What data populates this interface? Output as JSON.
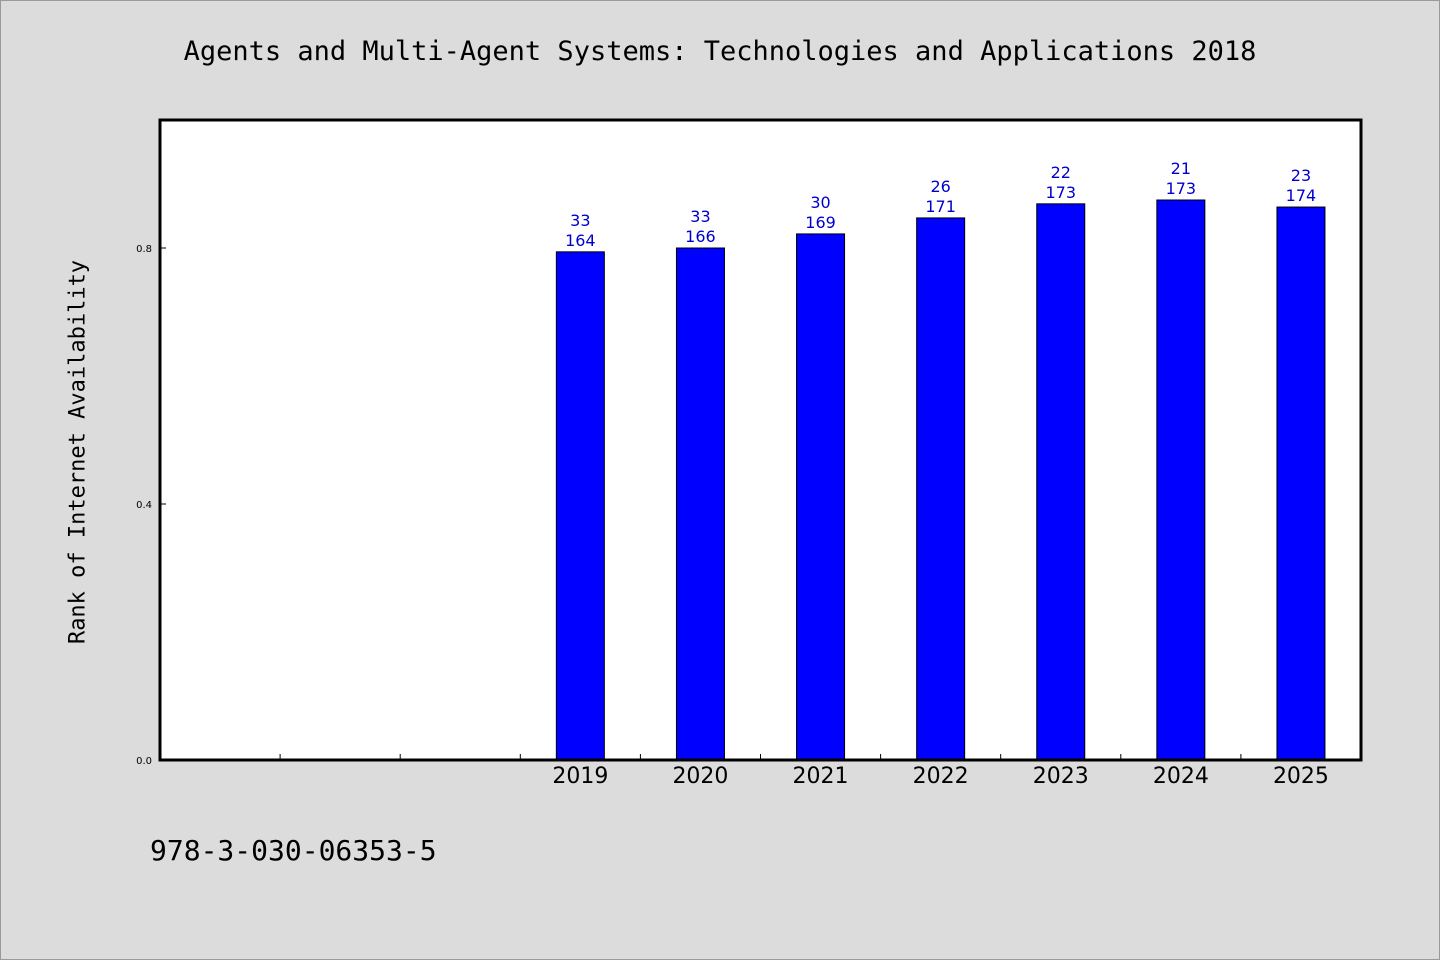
{
  "chart_data": {
    "type": "bar",
    "title": "Agents and Multi-Agent Systems: Technologies and Applications 2018",
    "ylabel": "Rank of Internet Availability",
    "xlabel": "",
    "x_slots": [
      "",
      "",
      "",
      "2019",
      "2020",
      "2021",
      "2022",
      "2023",
      "2024",
      "2025"
    ],
    "categories": [
      "2019",
      "2020",
      "2021",
      "2022",
      "2023",
      "2024",
      "2025"
    ],
    "values": [
      0.794,
      0.8,
      0.822,
      0.847,
      0.869,
      0.875,
      0.864
    ],
    "labels_top": [
      "33",
      "33",
      "30",
      "26",
      "22",
      "21",
      "23"
    ],
    "labels_bottom": [
      "164",
      "166",
      "169",
      "171",
      "173",
      "173",
      "174"
    ],
    "ylim": [
      0,
      1.0
    ],
    "yticks": [
      0.0,
      0.4,
      0.8
    ],
    "ytick_labels": [
      "0.0",
      "0.4",
      "0.8"
    ],
    "grid": false,
    "bar_color": "#0000ff",
    "label_color": "#0000cc"
  },
  "footer": {
    "isbn": "978-3-030-06353-5"
  }
}
